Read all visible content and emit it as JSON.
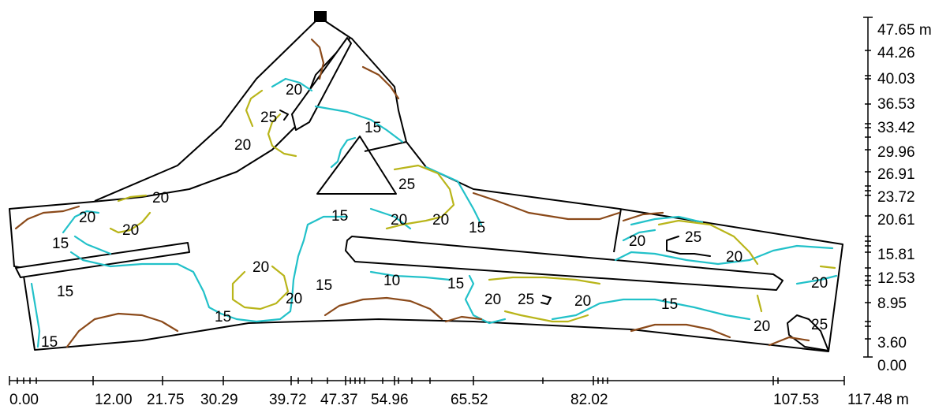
{
  "colors": {
    "outline": "#000000",
    "contour_level_10": "#8b4a1a",
    "contour_level_15": "#22c1c9",
    "contour_level_20": "#b9b51a",
    "contour_level_25": "#000000",
    "marker": "#000000"
  },
  "x_axis": {
    "unit": "m",
    "labels": [
      "0.00",
      "12.00",
      "21.75",
      "30.29",
      "39.72",
      "47.37",
      "54.96",
      "65.52",
      "82.02",
      "107.53",
      "117.48 m"
    ]
  },
  "y_axis": {
    "unit": "m",
    "labels": [
      "47.65 m",
      "44.26",
      "40.03",
      "36.53",
      "33.42",
      "29.96",
      "26.91",
      "23.72",
      "20.61",
      "15.81",
      "12.53",
      "8.95",
      "3.60",
      "0.00"
    ]
  },
  "contour_labels": [
    "20",
    "25",
    "20",
    "15",
    "25",
    "20",
    "20",
    "20",
    "15",
    "15",
    "20",
    "20",
    "15",
    "15",
    "20",
    "15",
    "20",
    "15",
    "15",
    "10",
    "15",
    "20",
    "25",
    "20",
    "15",
    "20",
    "25",
    "20",
    "20",
    "20",
    "25"
  ]
}
